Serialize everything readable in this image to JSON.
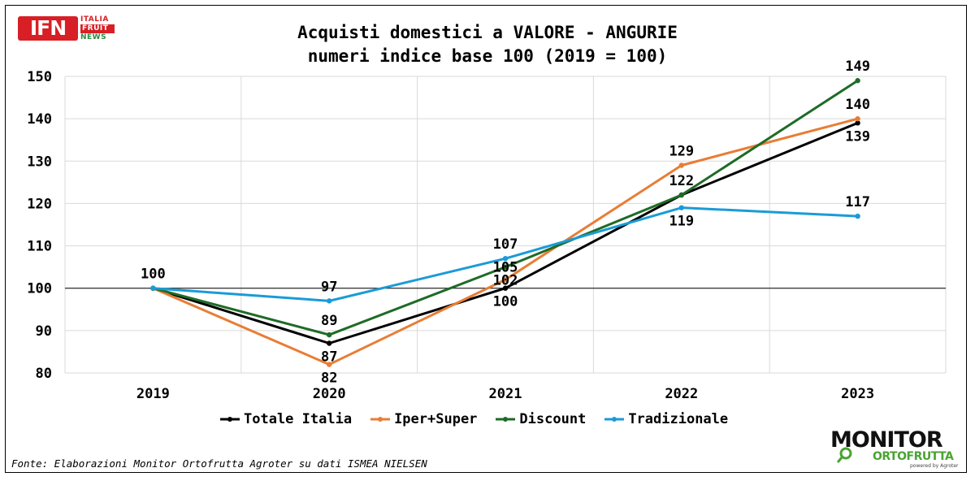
{
  "header": {
    "logo": {
      "main": "IFN",
      "line1": "ITALIA",
      "line2": "FRUIT",
      "line3": "NEWS"
    }
  },
  "chart_data": {
    "type": "line",
    "title": "Acquisti domestici a VALORE - ANGURIE",
    "subtitle": "numeri indice base 100 (2019 = 100)",
    "xlabel": "",
    "ylabel": "",
    "categories": [
      "2019",
      "2020",
      "2021",
      "2022",
      "2023"
    ],
    "ylim": [
      80,
      150
    ],
    "yticks": [
      80,
      90,
      100,
      110,
      120,
      130,
      140,
      150
    ],
    "reference_line": 100,
    "grid": true,
    "legend_position": "bottom",
    "series": [
      {
        "name": "Totale Italia",
        "color": "#000000",
        "values": [
          100,
          87,
          100,
          122,
          139
        ]
      },
      {
        "name": "Iper+Super",
        "color": "#e87d35",
        "values": [
          100,
          82,
          102,
          129,
          140
        ]
      },
      {
        "name": "Discount",
        "color": "#1f6b27",
        "values": [
          100,
          89,
          105,
          122,
          149
        ]
      },
      {
        "name": "Tradizionale",
        "color": "#1a9bd7",
        "values": [
          100,
          97,
          107,
          119,
          117
        ]
      }
    ],
    "data_labels": [
      {
        "text": "100",
        "category": "2019",
        "value": 100,
        "place": "above"
      },
      {
        "text": "97",
        "category": "2020",
        "value": 97,
        "place": "above"
      },
      {
        "text": "89",
        "category": "2020",
        "value": 89,
        "place": "above"
      },
      {
        "text": "87",
        "category": "2020",
        "value": 87,
        "place": "below"
      },
      {
        "text": "82",
        "category": "2020",
        "value": 82,
        "place": "below"
      },
      {
        "text": "107",
        "category": "2021",
        "value": 107,
        "place": "above"
      },
      {
        "text": "105",
        "category": "2021",
        "value": 105,
        "place": "center"
      },
      {
        "text": "102",
        "category": "2021",
        "value": 102,
        "place": "center"
      },
      {
        "text": "100",
        "category": "2021",
        "value": 100,
        "place": "below"
      },
      {
        "text": "129",
        "category": "2022",
        "value": 129,
        "place": "above"
      },
      {
        "text": "122",
        "category": "2022",
        "value": 122,
        "place": "above"
      },
      {
        "text": "119",
        "category": "2022",
        "value": 119,
        "place": "below"
      },
      {
        "text": "149",
        "category": "2023",
        "value": 149,
        "place": "above"
      },
      {
        "text": "140",
        "category": "2023",
        "value": 140,
        "place": "above"
      },
      {
        "text": "139",
        "category": "2023",
        "value": 139,
        "place": "below"
      },
      {
        "text": "117",
        "category": "2023",
        "value": 117,
        "place": "above"
      }
    ]
  },
  "source_note": "Fonte: Elaborazioni Monitor Ortofrutta Agroter su dati ISMEA NIELSEN",
  "brand": {
    "line1": "MONITOR",
    "line2": "ORTOFRUTTA",
    "line3": "powered by Agroter"
  }
}
